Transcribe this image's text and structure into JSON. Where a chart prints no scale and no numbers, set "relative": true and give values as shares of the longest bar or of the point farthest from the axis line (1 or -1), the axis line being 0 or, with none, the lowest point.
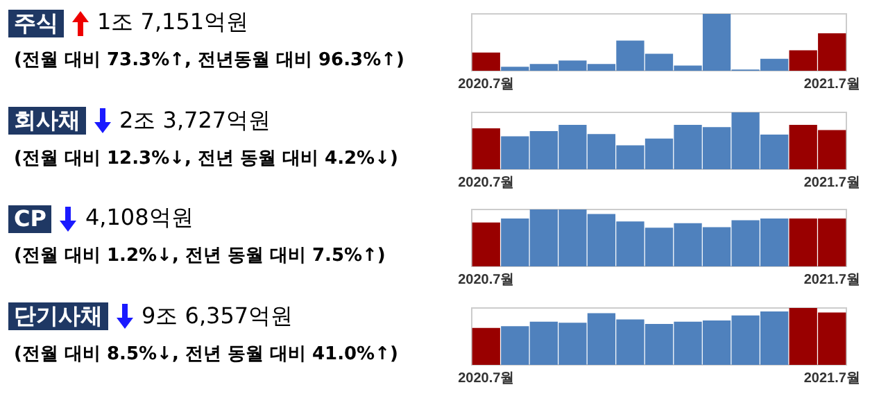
{
  "chart_data": [
    {
      "type": "other",
      "title": "주식",
      "subtitle": "1조 7,151억원",
      "annotations": [
        "(전월 대비 73.3%↑, 전년동월 대비 96.3%↑)"
      ]
    },
    {
      "type": "bar",
      "relative": true,
      "categories": [
        "2020.7월",
        null,
        null,
        null,
        null,
        null,
        null,
        null,
        null,
        null,
        null,
        null,
        "2021.7월"
      ],
      "values": [
        0.32,
        0.07,
        0.12,
        0.18,
        0.12,
        0.53,
        0.3,
        0.09,
        1,
        0.02,
        0.21,
        0.36,
        0.66
      ],
      "colors": [
        "#990000",
        "#4f81bd",
        "#4f81bd",
        "#4f81bd",
        "#4f81bd",
        "#4f81bd",
        "#4f81bd",
        "#4f81bd",
        "#4f81bd",
        "#4f81bd",
        "#4f81bd",
        "#990000",
        "#990000"
      ]
    },
    {
      "type": "other",
      "title": "회사채",
      "subtitle": "2조 3,727억원",
      "annotations": [
        "(전월 대비 12.3%↓, 전년 동월 대비 4.2%↓)"
      ]
    },
    {
      "type": "bar",
      "relative": true,
      "categories": [
        "2020.7월",
        null,
        null,
        null,
        null,
        null,
        null,
        null,
        null,
        null,
        null,
        null,
        "2021.7월"
      ],
      "values": [
        0.72,
        0.58,
        0.67,
        0.78,
        0.62,
        0.42,
        0.54,
        0.78,
        0.74,
        1,
        0.61,
        0.78,
        0.69
      ],
      "colors": [
        "#990000",
        "#4f81bd",
        "#4f81bd",
        "#4f81bd",
        "#4f81bd",
        "#4f81bd",
        "#4f81bd",
        "#4f81bd",
        "#4f81bd",
        "#4f81bd",
        "#4f81bd",
        "#990000",
        "#990000"
      ]
    },
    {
      "type": "other",
      "title": "CP",
      "subtitle": "4,108억원",
      "annotations": [
        "(전월 대비 1.2%↓, 전년 동월 대비 7.5%↑)"
      ]
    },
    {
      "type": "bar",
      "relative": true,
      "categories": [
        "2020.7월",
        null,
        null,
        null,
        null,
        null,
        null,
        null,
        null,
        null,
        null,
        null,
        "2021.7월"
      ],
      "values": [
        0.77,
        0.84,
        1,
        1,
        0.92,
        0.79,
        0.68,
        0.76,
        0.69,
        0.81,
        0.84,
        0.84,
        0.84
      ],
      "colors": [
        "#990000",
        "#4f81bd",
        "#4f81bd",
        "#4f81bd",
        "#4f81bd",
        "#4f81bd",
        "#4f81bd",
        "#4f81bd",
        "#4f81bd",
        "#4f81bd",
        "#4f81bd",
        "#990000",
        "#990000"
      ]
    },
    {
      "type": "other",
      "title": "단기사채",
      "subtitle": "9조 6,357억원",
      "annotations": [
        "(전월 대비 8.5%↓, 전년 동월 대비 41.0%↑)"
      ]
    },
    {
      "type": "bar",
      "relative": true,
      "categories": [
        "2020.7월",
        null,
        null,
        null,
        null,
        null,
        null,
        null,
        null,
        null,
        null,
        null,
        "2021.7월"
      ],
      "values": [
        0.65,
        0.68,
        0.76,
        0.74,
        0.91,
        0.8,
        0.72,
        0.76,
        0.78,
        0.87,
        0.94,
        1,
        0.92
      ],
      "colors": [
        "#990000",
        "#4f81bd",
        "#4f81bd",
        "#4f81bd",
        "#4f81bd",
        "#4f81bd",
        "#4f81bd",
        "#4f81bd",
        "#4f81bd",
        "#4f81bd",
        "#4f81bd",
        "#990000",
        "#990000"
      ]
    }
  ]
}
